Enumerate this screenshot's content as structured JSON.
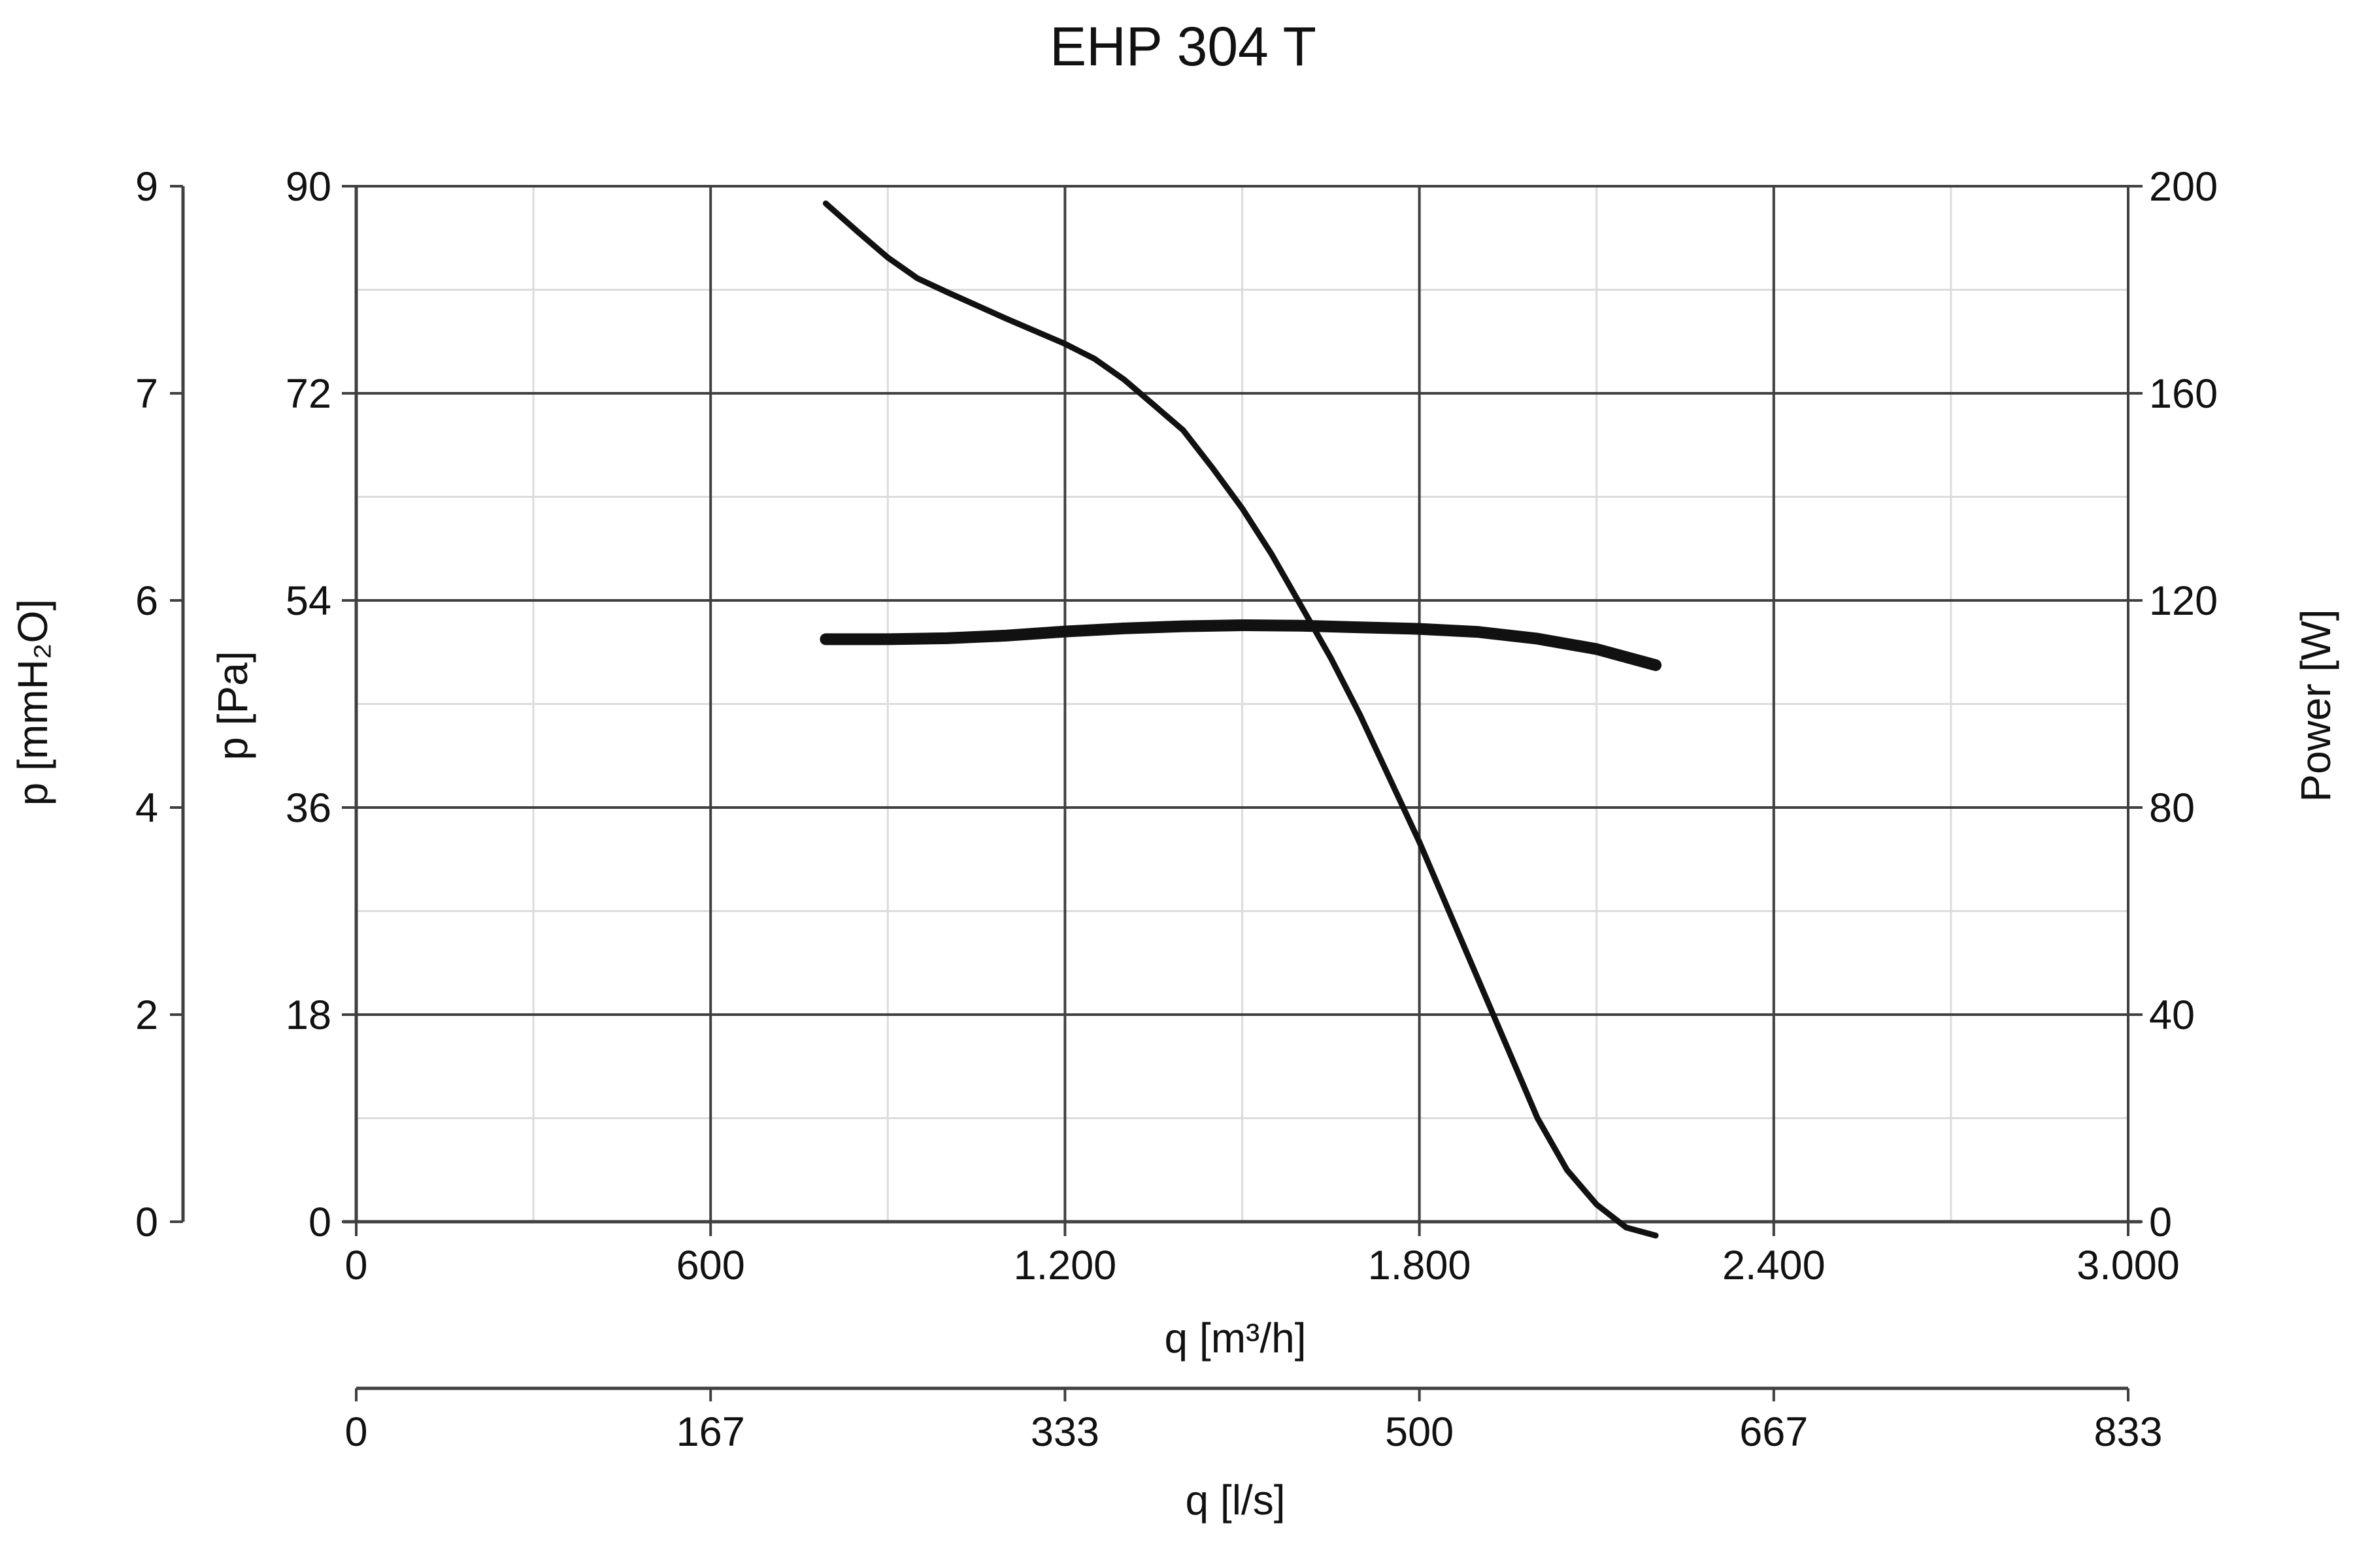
{
  "chart_data": {
    "type": "line",
    "title": "EHP 304 T",
    "x_axis_primary": {
      "label": "q [m³/h]",
      "range": [
        0,
        3000
      ],
      "ticks": [
        0,
        600,
        1200,
        1800,
        2400,
        3000
      ],
      "tick_labels": [
        "0",
        "600",
        "1.200",
        "1.800",
        "2.400",
        "3.000"
      ],
      "minor_grid_step": 300
    },
    "x_axis_secondary": {
      "label": "q [l/s]",
      "range": [
        0,
        833
      ],
      "tick_labels": [
        "0",
        "167",
        "333",
        "500",
        "667",
        "833"
      ]
    },
    "y_axis_pressure_pa": {
      "label": "p [Pa]",
      "range": [
        0,
        90
      ],
      "ticks": [
        0,
        18,
        36,
        54,
        72,
        90
      ],
      "tick_labels": [
        "0",
        "18",
        "36",
        "54",
        "72",
        "90"
      ],
      "minor_grid_step": 9
    },
    "y_axis_pressure_mmh2o": {
      "label": "p [mmH₂O]",
      "range": [
        0,
        9
      ],
      "tick_labels": [
        "0",
        "2",
        "4",
        "6",
        "7",
        "9"
      ]
    },
    "y_axis_power": {
      "label": "Power [W]",
      "range": [
        0,
        200
      ],
      "ticks": [
        0,
        40,
        80,
        120,
        160,
        200
      ],
      "tick_labels": [
        "0",
        "40",
        "80",
        "120",
        "160",
        "200"
      ]
    },
    "grid": true,
    "series": [
      {
        "axis": "pressure",
        "x": [
          795,
          850,
          900,
          950,
          1000,
          1100,
          1200,
          1250,
          1300,
          1350,
          1400,
          1450,
          1500,
          1550,
          1600,
          1650,
          1700,
          1750,
          1800,
          1850,
          1900,
          1950,
          2000,
          2050,
          2100,
          2150,
          2200
        ],
        "values": [
          88.5,
          86.0,
          83.8,
          82.0,
          80.8,
          78.5,
          76.3,
          75.0,
          73.2,
          71.0,
          68.8,
          65.5,
          62.0,
          58.0,
          53.5,
          49.0,
          44.0,
          38.5,
          33.0,
          27.0,
          21.0,
          15.0,
          9.0,
          4.5,
          1.5,
          -0.5,
          -1.2
        ]
      },
      {
        "axis": "power",
        "x": [
          795,
          900,
          1000,
          1100,
          1200,
          1300,
          1400,
          1500,
          1600,
          1700,
          1800,
          1900,
          2000,
          2100,
          2200
        ],
        "values": [
          112.5,
          112.5,
          112.7,
          113.2,
          114.0,
          114.6,
          115.0,
          115.2,
          115.1,
          114.8,
          114.5,
          113.9,
          112.6,
          110.6,
          107.5
        ]
      }
    ]
  }
}
